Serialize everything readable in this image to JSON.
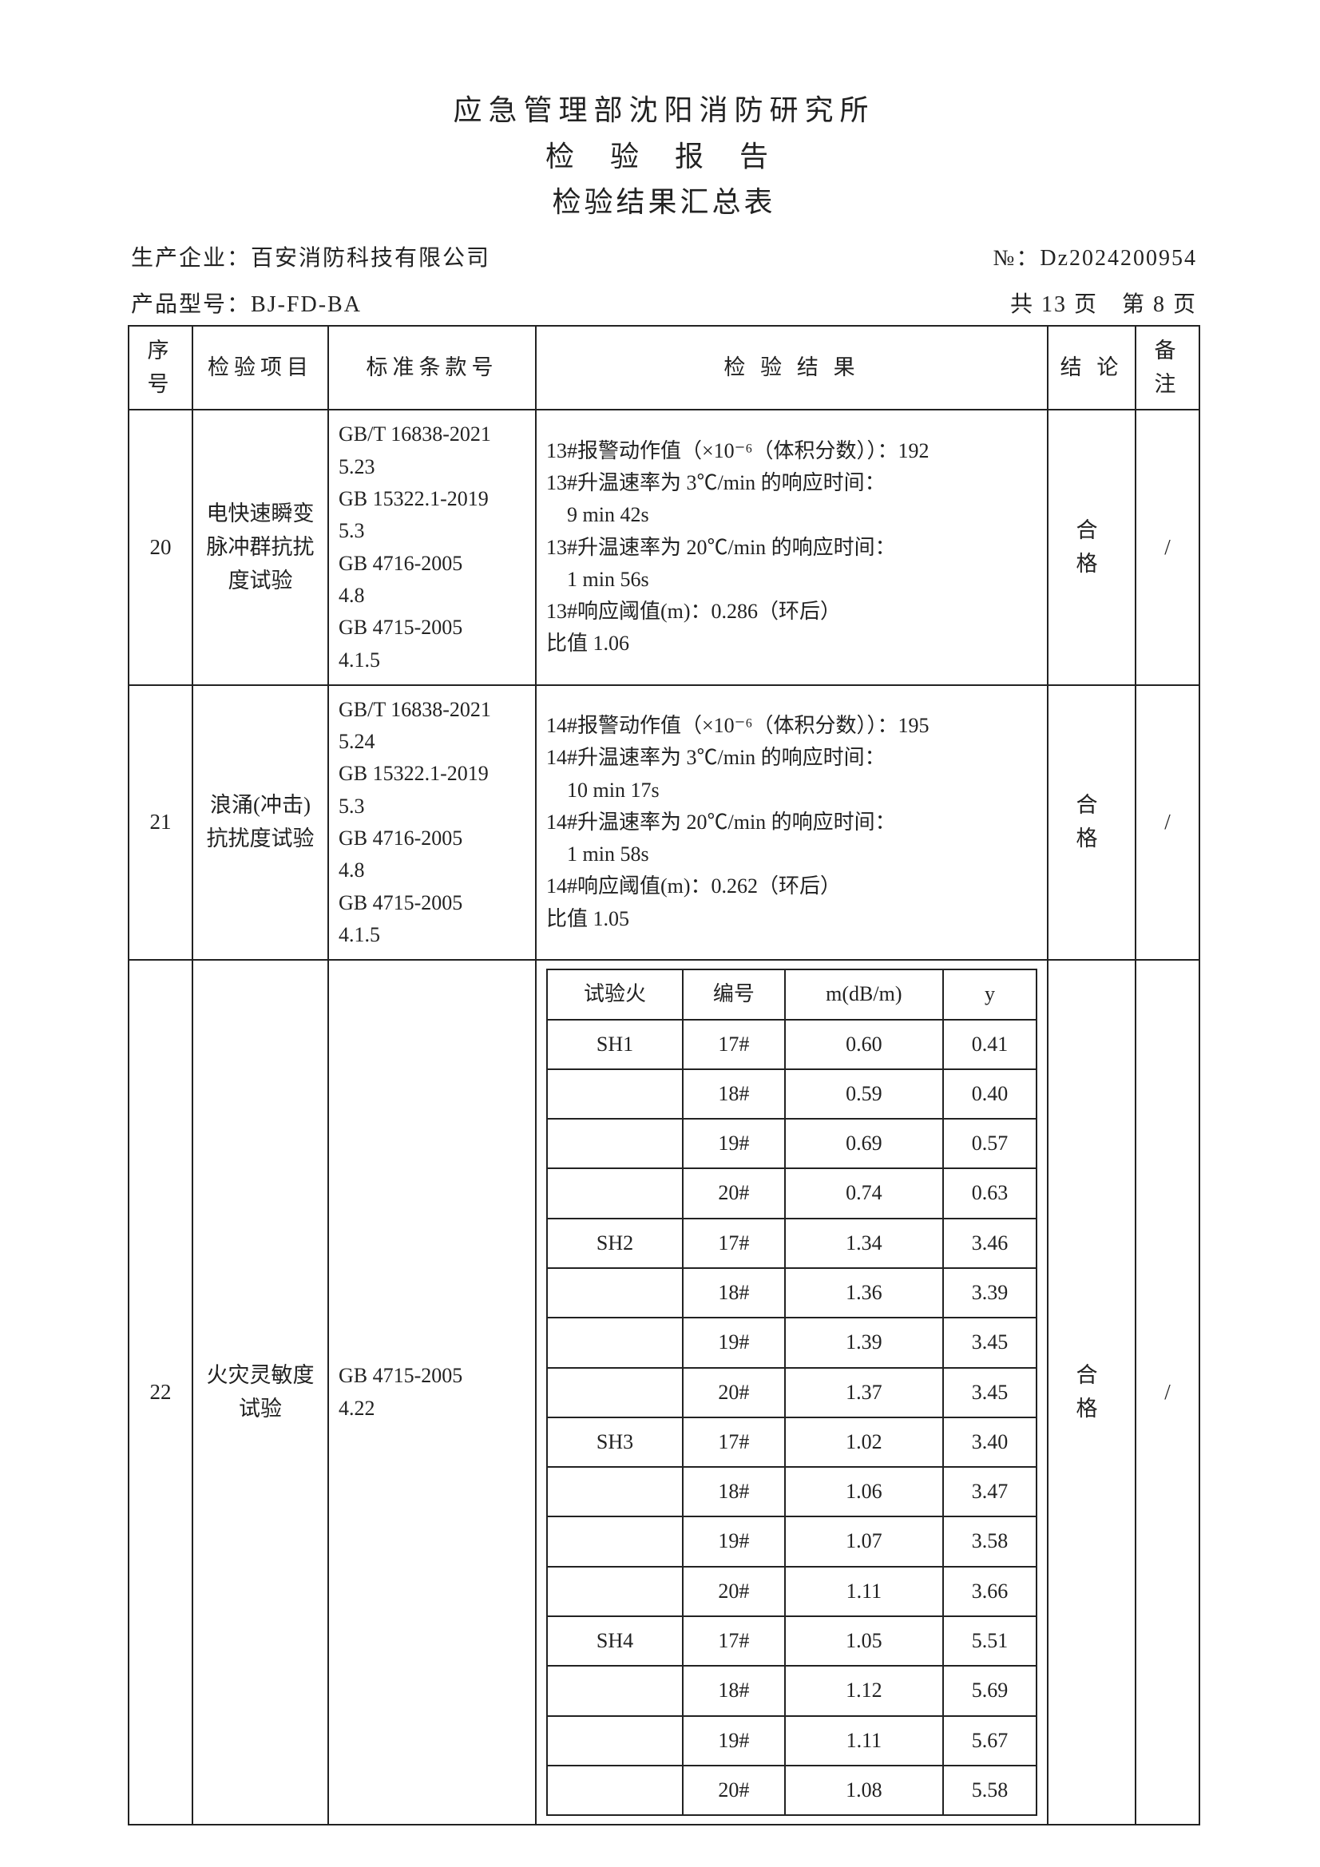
{
  "header": {
    "org": "应急管理部沈阳消防研究所",
    "doc_type": "检 验 报 告",
    "table_title": "检验结果汇总表",
    "manufacturer_label": "生产企业：",
    "manufacturer": "百安消防科技有限公司",
    "report_no_label": "№：",
    "report_no": "Dz2024200954",
    "model_label": "产品型号：",
    "model": "BJ-FD-BA",
    "page_info": "共 13 页　第 8 页"
  },
  "columns": {
    "seq": "序号",
    "item": "检验项目",
    "std": "标准条款号",
    "result": "检 验 结 果",
    "conclusion": "结 论",
    "note": "备注"
  },
  "rows": [
    {
      "seq": "20",
      "item": "电快速瞬变脉冲群抗扰度试验",
      "std": "GB/T 16838-2021\n5.23\nGB 15322.1-2019\n5.3\nGB 4716-2005\n4.8\nGB 4715-2005\n4.1.5",
      "result": "13#报警动作值（×10⁻⁶（体积分数））：192\n13#升温速率为 3℃/min 的响应时间：\n　9 min 42s\n13#升温速率为 20℃/min 的响应时间：\n　1 min 56s\n13#响应阈值(m)：0.286（环后）\n比值 1.06",
      "conclusion": "合 格",
      "note": "/"
    },
    {
      "seq": "21",
      "item": "浪涌(冲击)抗扰度试验",
      "std": "GB/T 16838-2021\n5.24\nGB 15322.1-2019\n5.3\nGB 4716-2005\n4.8\nGB 4715-2005\n4.1.5",
      "result": "14#报警动作值（×10⁻⁶（体积分数））：195\n14#升温速率为 3℃/min 的响应时间：\n　10 min 17s\n14#升温速率为 20℃/min 的响应时间：\n　1 min 58s\n14#响应阈值(m)：0.262（环后）\n比值 1.05",
      "conclusion": "合 格",
      "note": "/"
    },
    {
      "seq": "22",
      "item": "火灾灵敏度试验",
      "std": "GB 4715-2005\n4.22",
      "result_table": {
        "headers": [
          "试验火",
          "编号",
          "m(dB/m)",
          "y"
        ],
        "rows": [
          [
            "SH1",
            "17#",
            "0.60",
            "0.41"
          ],
          [
            "",
            "18#",
            "0.59",
            "0.40"
          ],
          [
            "",
            "19#",
            "0.69",
            "0.57"
          ],
          [
            "",
            "20#",
            "0.74",
            "0.63"
          ],
          [
            "SH2",
            "17#",
            "1.34",
            "3.46"
          ],
          [
            "",
            "18#",
            "1.36",
            "3.39"
          ],
          [
            "",
            "19#",
            "1.39",
            "3.45"
          ],
          [
            "",
            "20#",
            "1.37",
            "3.45"
          ],
          [
            "SH3",
            "17#",
            "1.02",
            "3.40"
          ],
          [
            "",
            "18#",
            "1.06",
            "3.47"
          ],
          [
            "",
            "19#",
            "1.07",
            "3.58"
          ],
          [
            "",
            "20#",
            "1.11",
            "3.66"
          ],
          [
            "SH4",
            "17#",
            "1.05",
            "5.51"
          ],
          [
            "",
            "18#",
            "1.12",
            "5.69"
          ],
          [
            "",
            "19#",
            "1.11",
            "5.67"
          ],
          [
            "",
            "20#",
            "1.08",
            "5.58"
          ]
        ]
      },
      "conclusion": "合 格",
      "note": "/"
    }
  ],
  "style": {
    "page_bg": "#ffffff",
    "text_color": "#222222",
    "border_color": "#222222",
    "title_fontsize": 36,
    "body_fontsize": 27,
    "inner_fontsize": 26
  }
}
